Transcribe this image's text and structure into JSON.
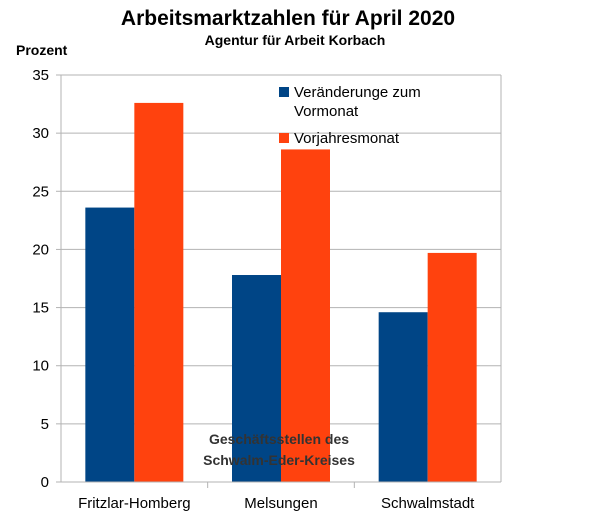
{
  "chart_data": {
    "type": "bar",
    "title": "Arbeitsmarktzahlen für April  2020",
    "subtitle": "Agentur für Arbeit Korbach",
    "ylabel": "Prozent",
    "xlabel": "",
    "categories": [
      "Fritzlar-Homberg",
      "Melsungen",
      "Schwalmstadt"
    ],
    "series": [
      {
        "name_lines": [
          "Veränderunge zum",
          "Vormonat"
        ],
        "color": "#004586",
        "values": [
          23.6,
          17.8,
          14.6
        ]
      },
      {
        "name_lines": [
          "Vorjahresmonat"
        ],
        "color": "#ff420e",
        "values": [
          32.6,
          28.6,
          19.7
        ]
      }
    ],
    "ylim": [
      0,
      35
    ],
    "yticks": [
      0,
      5,
      10,
      15,
      20,
      25,
      30,
      35
    ],
    "grid": true,
    "legend": "top-right",
    "annotation_lines": [
      "Geschäftsstellen des",
      "Schwalm-Eder-Kreises"
    ]
  }
}
